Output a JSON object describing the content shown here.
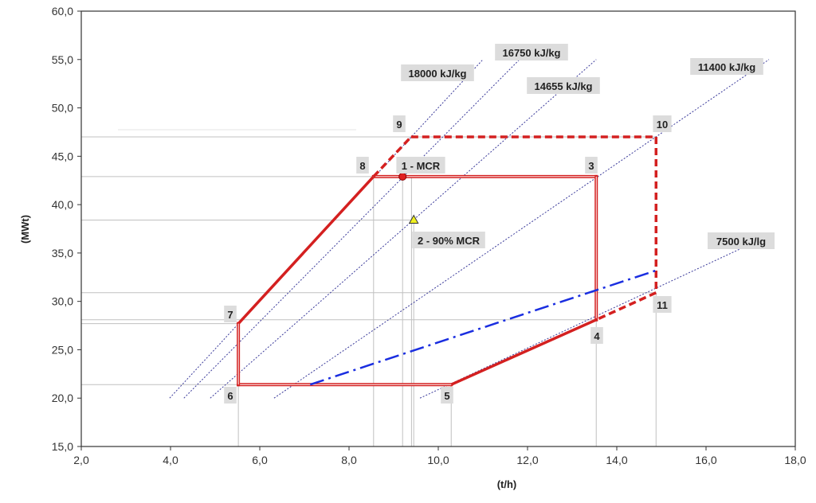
{
  "chart_data": {
    "type": "line",
    "title": "",
    "xlabel": "(t/h)",
    "ylabel": "(MWt)",
    "xlim": [
      2,
      18
    ],
    "ylim": [
      15,
      60
    ],
    "xticks": [
      "2,0",
      "4,0",
      "6,0",
      "8,0",
      "10,0",
      "12,0",
      "14,0",
      "16,0",
      "18,0"
    ],
    "yticks": [
      "15,0",
      "20,0",
      "25,0",
      "30,0",
      "35,0",
      "40,0",
      "45,0",
      "50,0",
      "55,0",
      "60,0"
    ],
    "grid": false,
    "colors": {
      "envelope": "#d42020",
      "blue_line": "#1a2ee0",
      "fuel_lines": "#3a3a9a",
      "guide": "#c0c0c0",
      "label_bg": "#dcdcdc",
      "mcr_point": "#e02020",
      "mcr90_point": "#f0f020"
    },
    "points": [
      {
        "id": "1",
        "label": "1 - MCR",
        "x": 9.2,
        "y": 42.9,
        "marker": "circle"
      },
      {
        "id": "2",
        "label": "2 - 90% MCR",
        "x": 9.45,
        "y": 38.4,
        "marker": "triangle"
      },
      {
        "id": "3",
        "label": "3",
        "x": 13.54,
        "y": 42.9
      },
      {
        "id": "4",
        "label": "4",
        "x": 13.54,
        "y": 28.1
      },
      {
        "id": "5",
        "label": "5",
        "x": 10.29,
        "y": 21.4
      },
      {
        "id": "6",
        "label": "6",
        "x": 5.52,
        "y": 21.4
      },
      {
        "id": "7",
        "label": "7",
        "x": 5.52,
        "y": 27.7
      },
      {
        "id": "8",
        "label": "8",
        "x": 8.55,
        "y": 42.9
      },
      {
        "id": "9",
        "label": "9",
        "x": 9.39,
        "y": 47.0
      },
      {
        "id": "10",
        "label": "10",
        "x": 14.88,
        "y": 47.0
      },
      {
        "id": "11",
        "label": "11",
        "x": 14.88,
        "y": 30.9
      }
    ],
    "envelope_segments": [
      {
        "from": "7",
        "to": "8",
        "style": "solid-thick"
      },
      {
        "from": "8",
        "to": "3",
        "style": "double"
      },
      {
        "from": "3",
        "to": "4",
        "style": "double"
      },
      {
        "from": "4",
        "to": "5",
        "style": "solid-thick"
      },
      {
        "from": "5",
        "to": "6",
        "style": "double"
      },
      {
        "from": "6",
        "to": "7",
        "style": "double"
      },
      {
        "from": "8",
        "to": "9",
        "style": "dashed"
      },
      {
        "from": "9",
        "to": "10",
        "style": "dashed"
      },
      {
        "from": "10",
        "to": "11",
        "style": "dashed"
      },
      {
        "from": "11",
        "to": "4",
        "style": "dashed"
      }
    ],
    "blue_line": {
      "x": [
        7.13,
        14.95
      ],
      "y": [
        21.4,
        33.3
      ],
      "style": "dash-dot"
    },
    "fuel_lines": [
      {
        "name": "18000 kJ/kg",
        "x": [
          3.98,
          11.0
        ],
        "y": [
          20.0,
          55.0
        ]
      },
      {
        "name": "16750 kJ/kg",
        "x": [
          4.3,
          11.82
        ],
        "y": [
          20.0,
          55.0
        ]
      },
      {
        "name": "14655 kJ/kg",
        "x": [
          4.89,
          13.54
        ],
        "y": [
          20.0,
          55.0
        ]
      },
      {
        "name": "11400 kJ/kg",
        "x": [
          6.32,
          17.41
        ],
        "y": [
          20.0,
          55.0
        ]
      },
      {
        "name": "7500 kJ/lg",
        "x": [
          9.59,
          17.5
        ],
        "y": [
          20.0,
          37.0
        ]
      }
    ]
  }
}
